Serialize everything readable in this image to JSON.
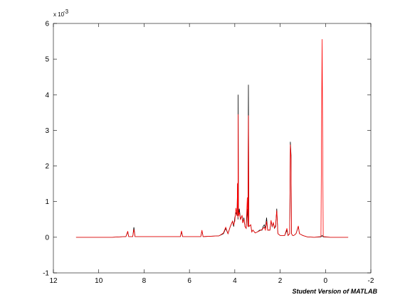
{
  "chart_data": {
    "type": "line",
    "title": "",
    "xlabel": "",
    "ylabel": "",
    "x_reversed": true,
    "xlim": [
      -2,
      12
    ],
    "ylim": [
      -1,
      6
    ],
    "y_multiplier": "x 10",
    "y_multiplier_exponent": "-3",
    "x_ticks": [
      12,
      10,
      8,
      6,
      4,
      2,
      0,
      -2
    ],
    "y_ticks": [
      -1,
      0,
      1,
      2,
      3,
      4,
      5,
      6
    ],
    "grid": false,
    "series": [
      {
        "color": "#000000",
        "points": [
          [
            11.0,
            0.0
          ],
          [
            10.2,
            0.0
          ],
          [
            9.4,
            0.0
          ],
          [
            8.8,
            0.02
          ],
          [
            8.72,
            0.15
          ],
          [
            8.68,
            0.02
          ],
          [
            8.5,
            0.02
          ],
          [
            8.45,
            0.28
          ],
          [
            8.4,
            0.02
          ],
          [
            7.5,
            0.02
          ],
          [
            6.4,
            0.02
          ],
          [
            6.35,
            0.15
          ],
          [
            6.3,
            0.02
          ],
          [
            5.5,
            0.02
          ],
          [
            5.45,
            0.18
          ],
          [
            5.4,
            0.02
          ],
          [
            4.7,
            0.04
          ],
          [
            4.5,
            0.1
          ],
          [
            4.4,
            0.25
          ],
          [
            4.3,
            0.1
          ],
          [
            4.2,
            0.3
          ],
          [
            4.1,
            0.45
          ],
          [
            4.05,
            0.3
          ],
          [
            4.0,
            0.55
          ],
          [
            3.95,
            0.7
          ],
          [
            3.9,
            0.6
          ],
          [
            3.88,
            1.5
          ],
          [
            3.86,
            0.5
          ],
          [
            3.85,
            4.0
          ],
          [
            3.84,
            0.6
          ],
          [
            3.8,
            0.8
          ],
          [
            3.75,
            0.5
          ],
          [
            3.72,
            0.55
          ],
          [
            3.68,
            0.6
          ],
          [
            3.65,
            0.4
          ],
          [
            3.6,
            0.55
          ],
          [
            3.55,
            0.3
          ],
          [
            3.5,
            0.25
          ],
          [
            3.45,
            0.8
          ],
          [
            3.42,
            0.3
          ],
          [
            3.4,
            4.28
          ],
          [
            3.38,
            0.3
          ],
          [
            3.3,
            0.35
          ],
          [
            3.25,
            0.15
          ],
          [
            3.2,
            0.2
          ],
          [
            3.1,
            0.12
          ],
          [
            3.0,
            0.15
          ],
          [
            2.9,
            0.2
          ],
          [
            2.8,
            0.2
          ],
          [
            2.75,
            0.3
          ],
          [
            2.7,
            0.35
          ],
          [
            2.65,
            0.25
          ],
          [
            2.6,
            0.55
          ],
          [
            2.55,
            0.2
          ],
          [
            2.45,
            0.2
          ],
          [
            2.4,
            0.45
          ],
          [
            2.35,
            0.3
          ],
          [
            2.3,
            0.4
          ],
          [
            2.25,
            0.25
          ],
          [
            2.2,
            0.3
          ],
          [
            2.15,
            0.8
          ],
          [
            2.1,
            0.1
          ],
          [
            2.0,
            0.05
          ],
          [
            1.8,
            0.05
          ],
          [
            1.7,
            0.2
          ],
          [
            1.65,
            0.05
          ],
          [
            1.58,
            0.1
          ],
          [
            1.55,
            2.68
          ],
          [
            1.52,
            2.3
          ],
          [
            1.5,
            0.1
          ],
          [
            1.45,
            0.05
          ],
          [
            1.4,
            0.05
          ],
          [
            1.3,
            0.1
          ],
          [
            1.2,
            0.3
          ],
          [
            1.15,
            0.1
          ],
          [
            1.0,
            0.05
          ],
          [
            0.8,
            0.01
          ],
          [
            0.5,
            0.0
          ],
          [
            0.2,
            0.01
          ],
          [
            0.15,
            0.05
          ],
          [
            0.1,
            0.01
          ],
          [
            -0.2,
            0.0
          ],
          [
            -1.0,
            0.0
          ]
        ]
      },
      {
        "color": "#ff0000",
        "points": [
          [
            11.0,
            0.0
          ],
          [
            10.2,
            0.0
          ],
          [
            9.4,
            0.0
          ],
          [
            8.8,
            0.02
          ],
          [
            8.72,
            0.17
          ],
          [
            8.68,
            0.02
          ],
          [
            8.5,
            0.02
          ],
          [
            8.45,
            0.22
          ],
          [
            8.4,
            0.02
          ],
          [
            7.5,
            0.02
          ],
          [
            6.4,
            0.02
          ],
          [
            6.35,
            0.18
          ],
          [
            6.3,
            0.02
          ],
          [
            5.5,
            0.02
          ],
          [
            5.45,
            0.2
          ],
          [
            5.4,
            0.02
          ],
          [
            4.7,
            0.04
          ],
          [
            4.5,
            0.12
          ],
          [
            4.4,
            0.28
          ],
          [
            4.3,
            0.1
          ],
          [
            4.2,
            0.3
          ],
          [
            4.1,
            0.45
          ],
          [
            4.05,
            0.35
          ],
          [
            4.0,
            0.45
          ],
          [
            3.95,
            0.82
          ],
          [
            3.9,
            0.6
          ],
          [
            3.88,
            1.52
          ],
          [
            3.86,
            0.55
          ],
          [
            3.85,
            3.45
          ],
          [
            3.84,
            0.6
          ],
          [
            3.8,
            0.7
          ],
          [
            3.75,
            0.5
          ],
          [
            3.72,
            0.55
          ],
          [
            3.68,
            0.62
          ],
          [
            3.65,
            0.4
          ],
          [
            3.6,
            0.5
          ],
          [
            3.55,
            0.3
          ],
          [
            3.5,
            0.25
          ],
          [
            3.45,
            1.12
          ],
          [
            3.42,
            0.3
          ],
          [
            3.4,
            3.42
          ],
          [
            3.38,
            0.3
          ],
          [
            3.3,
            0.35
          ],
          [
            3.25,
            0.15
          ],
          [
            3.2,
            0.2
          ],
          [
            3.1,
            0.12
          ],
          [
            3.0,
            0.15
          ],
          [
            2.9,
            0.18
          ],
          [
            2.8,
            0.22
          ],
          [
            2.75,
            0.25
          ],
          [
            2.7,
            0.28
          ],
          [
            2.65,
            0.2
          ],
          [
            2.6,
            0.45
          ],
          [
            2.55,
            0.2
          ],
          [
            2.45,
            0.2
          ],
          [
            2.4,
            0.48
          ],
          [
            2.35,
            0.3
          ],
          [
            2.3,
            0.42
          ],
          [
            2.25,
            0.25
          ],
          [
            2.2,
            0.35
          ],
          [
            2.15,
            0.75
          ],
          [
            2.1,
            0.1
          ],
          [
            2.0,
            0.05
          ],
          [
            1.8,
            0.05
          ],
          [
            1.7,
            0.25
          ],
          [
            1.65,
            0.05
          ],
          [
            1.58,
            0.1
          ],
          [
            1.55,
            2.6
          ],
          [
            1.52,
            2.2
          ],
          [
            1.5,
            0.1
          ],
          [
            1.45,
            0.05
          ],
          [
            1.4,
            0.05
          ],
          [
            1.3,
            0.1
          ],
          [
            1.2,
            0.32
          ],
          [
            1.15,
            0.1
          ],
          [
            1.0,
            0.05
          ],
          [
            0.8,
            0.01
          ],
          [
            0.5,
            0.0
          ],
          [
            0.2,
            0.02
          ],
          [
            0.15,
            5.56
          ],
          [
            0.1,
            0.02
          ],
          [
            -0.2,
            0.0
          ],
          [
            -1.0,
            0.0
          ]
        ]
      }
    ]
  },
  "footer": {
    "watermark": "Student Version of MATLAB"
  }
}
